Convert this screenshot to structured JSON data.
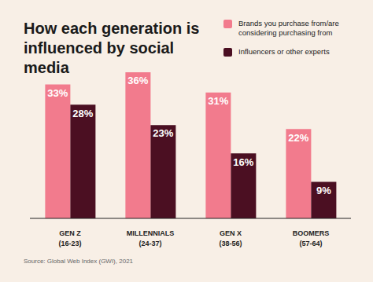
{
  "chart_data": {
    "type": "bar",
    "title": "How each generation is influenced by social media",
    "categories": [
      "GEN Z (16-23)",
      "MILLENNIALS (24-37)",
      "GEN X (38-56)",
      "BOOMERS (57-64)"
    ],
    "series": [
      {
        "name": "Brands you purchase from/are considering purchasing from",
        "color": "#f27b8d",
        "values": [
          33,
          36,
          31,
          22
        ],
        "value_labels": [
          "33%",
          "36%",
          "31%",
          "22%"
        ]
      },
      {
        "name": "Influencers or other experts",
        "color": "#4b0f22",
        "values": [
          28,
          23,
          16,
          9
        ],
        "value_labels": [
          "28%",
          "23%",
          "16%",
          "9%"
        ]
      }
    ],
    "ylim": [
      0,
      36
    ],
    "grid": false,
    "legend": "top-right",
    "data_labels": true,
    "tick_labels": "x",
    "annotations": [
      "Source: Global Web Index (GWI), 2021"
    ]
  }
}
